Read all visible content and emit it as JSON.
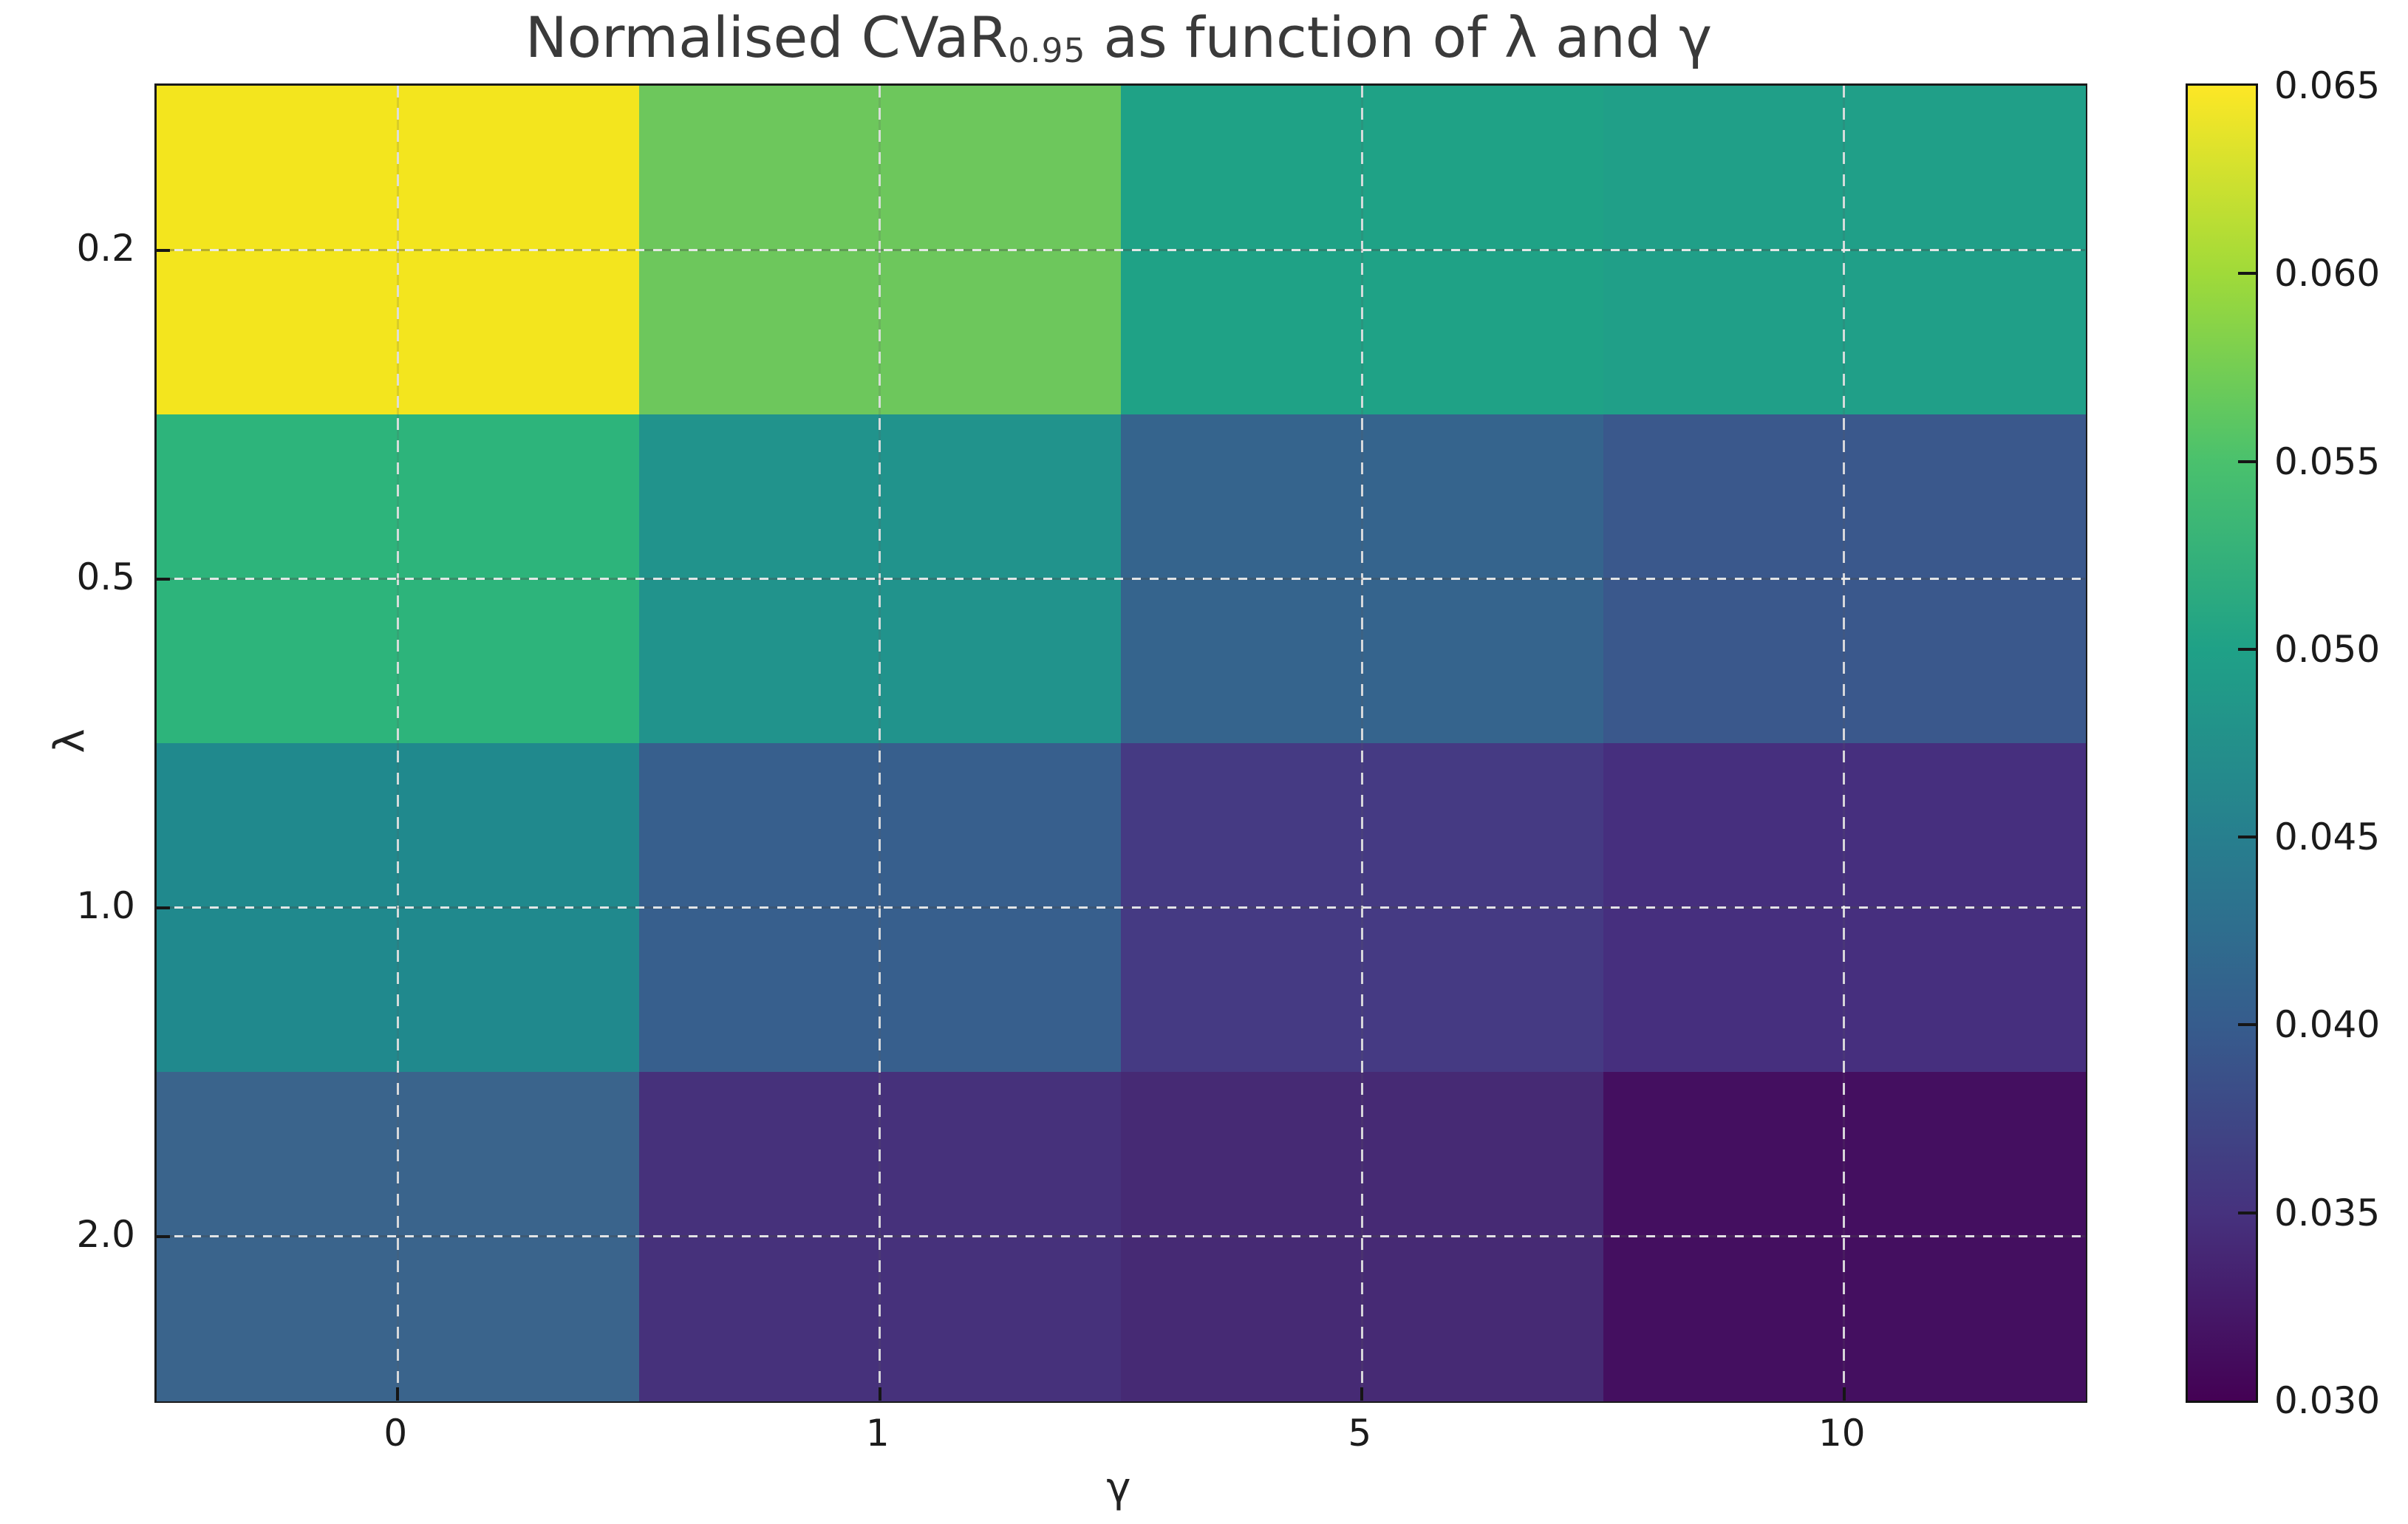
{
  "title": {
    "prefix": "Normalised CVaR",
    "subscript": "0.95",
    "suffix": " as function of λ and γ"
  },
  "chart_data": {
    "type": "heatmap",
    "title": "Normalised CVaR_0.95 as function of λ and γ",
    "xlabel": "γ",
    "ylabel": "λ",
    "x_tick_labels": [
      "0",
      "1",
      "5",
      "10"
    ],
    "x_values": [
      0,
      1,
      5,
      10
    ],
    "y_tick_labels": [
      "0.2",
      "0.5",
      "1.0",
      "2.0"
    ],
    "y_values": [
      0.2,
      0.5,
      1.0,
      2.0
    ],
    "values": [
      [
        0.064,
        0.057,
        0.051,
        0.05
      ],
      [
        0.053,
        0.048,
        0.042,
        0.04
      ],
      [
        0.046,
        0.041,
        0.037,
        0.035
      ],
      [
        0.041,
        0.036,
        0.034,
        0.031
      ]
    ],
    "cell_colors": [
      [
        "#f3e51e",
        "#6dc75c",
        "#1fa286",
        "#209f88"
      ],
      [
        "#2db47b",
        "#21938c",
        "#35648d",
        "#3a588c"
      ],
      [
        "#20898d",
        "#375f8d",
        "#453a83",
        "#462f7e"
      ],
      [
        "#3a648c",
        "#46317b",
        "#462a74",
        "#440f60"
      ]
    ],
    "grid": true,
    "colorbar": {
      "colormap": "viridis",
      "min": 0.03,
      "max": 0.065,
      "ticks": [
        0.065,
        0.06,
        0.055,
        0.05,
        0.045,
        0.04,
        0.035,
        0.03
      ],
      "tick_labels": [
        "0.065",
        "0.060",
        "0.055",
        "0.050",
        "0.045",
        "0.040",
        "0.035",
        "0.030"
      ],
      "gradient_stops_bottom_to_top": [
        "#440154",
        "#46327e",
        "#365c8d",
        "#277f8e",
        "#1fa187",
        "#4ac16d",
        "#a0da39",
        "#fde725"
      ]
    }
  }
}
